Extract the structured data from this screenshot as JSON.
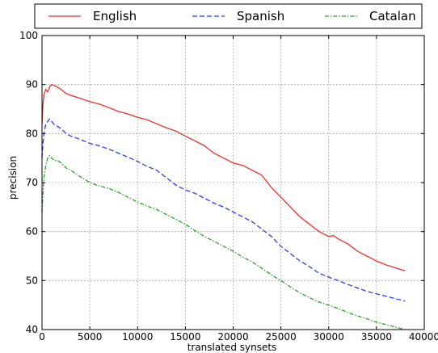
{
  "chart_data": {
    "type": "line",
    "xlabel": "translated synsets",
    "ylabel": "precision",
    "xlim": [
      0,
      40000
    ],
    "ylim": [
      40,
      100
    ],
    "x_ticks": [
      0,
      5000,
      10000,
      15000,
      20000,
      25000,
      30000,
      35000,
      40000
    ],
    "y_ticks": [
      40,
      50,
      60,
      70,
      80,
      90,
      100
    ],
    "x_tick_labels": [
      "0",
      "5000",
      "10000",
      "15000",
      "20000",
      "25000",
      "30000",
      "35000",
      "40000"
    ],
    "y_tick_labels": [
      "40",
      "50",
      "60",
      "70",
      "80",
      "90",
      "100"
    ],
    "grid": true,
    "legend_position": "top",
    "series": [
      {
        "name": "English",
        "color": "#e8312b",
        "style": "solid",
        "x": [
          0,
          100,
          200,
          400,
          600,
          800,
          1000,
          1300,
          1600,
          2000,
          2500,
          3000,
          4000,
          5000,
          6000,
          7000,
          8000,
          9000,
          10000,
          11000,
          12000,
          13000,
          14000,
          15000,
          16000,
          17000,
          18000,
          19000,
          20000,
          21000,
          22000,
          23000,
          24000,
          25000,
          26000,
          27000,
          28000,
          29000,
          30000,
          30500,
          31000,
          32000,
          33000,
          34000,
          35000,
          36000,
          37000,
          38000
        ],
        "y": [
          82,
          86,
          88,
          89,
          88.5,
          89.5,
          90,
          89.8,
          89.5,
          89,
          88.2,
          87.8,
          87.2,
          86.5,
          86,
          85.3,
          84.5,
          84,
          83.3,
          82.8,
          82,
          81.2,
          80.5,
          79.5,
          78.5,
          77.5,
          76,
          75,
          74,
          73.5,
          72.5,
          71.5,
          69,
          67,
          65,
          63,
          61.5,
          60,
          59,
          59.2,
          58.5,
          57.5,
          56,
          55,
          54,
          53.2,
          52.6,
          52
        ]
      },
      {
        "name": "Spanish",
        "color": "#2b3de8",
        "style": "dashed",
        "x": [
          0,
          100,
          200,
          400,
          600,
          800,
          1000,
          1300,
          1600,
          2000,
          2500,
          3000,
          4000,
          5000,
          6000,
          7000,
          8000,
          9000,
          10000,
          11000,
          12000,
          13000,
          14000,
          15000,
          16000,
          17000,
          18000,
          19000,
          20000,
          21000,
          22000,
          23000,
          24000,
          25000,
          26000,
          27000,
          28000,
          29000,
          30000,
          31000,
          32000,
          33000,
          34000,
          35000,
          36000,
          37000,
          38000
        ],
        "y": [
          75,
          78,
          80,
          82,
          82.5,
          83,
          82.5,
          81.8,
          81.5,
          81,
          80,
          79.5,
          78.8,
          78,
          77.5,
          76.8,
          76,
          75.2,
          74.3,
          73.3,
          72.5,
          71,
          69.5,
          68.5,
          67.8,
          66.8,
          65.8,
          65,
          64,
          63,
          62,
          60.5,
          59,
          57,
          55.5,
          54,
          52.8,
          51.5,
          50.7,
          50,
          49.2,
          48.5,
          47.8,
          47.3,
          46.8,
          46.3,
          45.8
        ]
      },
      {
        "name": "Catalan",
        "color": "#2a9d2a",
        "style": "dashdot",
        "x": [
          0,
          100,
          200,
          400,
          600,
          800,
          1000,
          1300,
          1600,
          2000,
          2500,
          3000,
          4000,
          5000,
          6000,
          7000,
          8000,
          9000,
          10000,
          11000,
          12000,
          13000,
          14000,
          15000,
          16000,
          17000,
          18000,
          19000,
          20000,
          21000,
          22000,
          23000,
          24000,
          25000,
          26000,
          27000,
          28000,
          29000,
          30000,
          31000,
          32000,
          33000,
          34000,
          35000,
          36000,
          37000,
          38000
        ],
        "y": [
          64,
          68,
          71,
          73.5,
          75,
          75.5,
          75,
          74.5,
          74.5,
          74,
          73,
          72.5,
          71.2,
          70,
          69.3,
          68.8,
          68,
          67,
          66,
          65.2,
          64.5,
          63.5,
          62.5,
          61.5,
          60.2,
          59,
          58,
          57,
          56,
          54.8,
          53.8,
          52.5,
          51.2,
          50,
          48.7,
          47.5,
          46.5,
          45.6,
          45,
          44.3,
          43.5,
          42.8,
          42.2,
          41.5,
          41,
          40.5,
          40
        ]
      }
    ]
  }
}
